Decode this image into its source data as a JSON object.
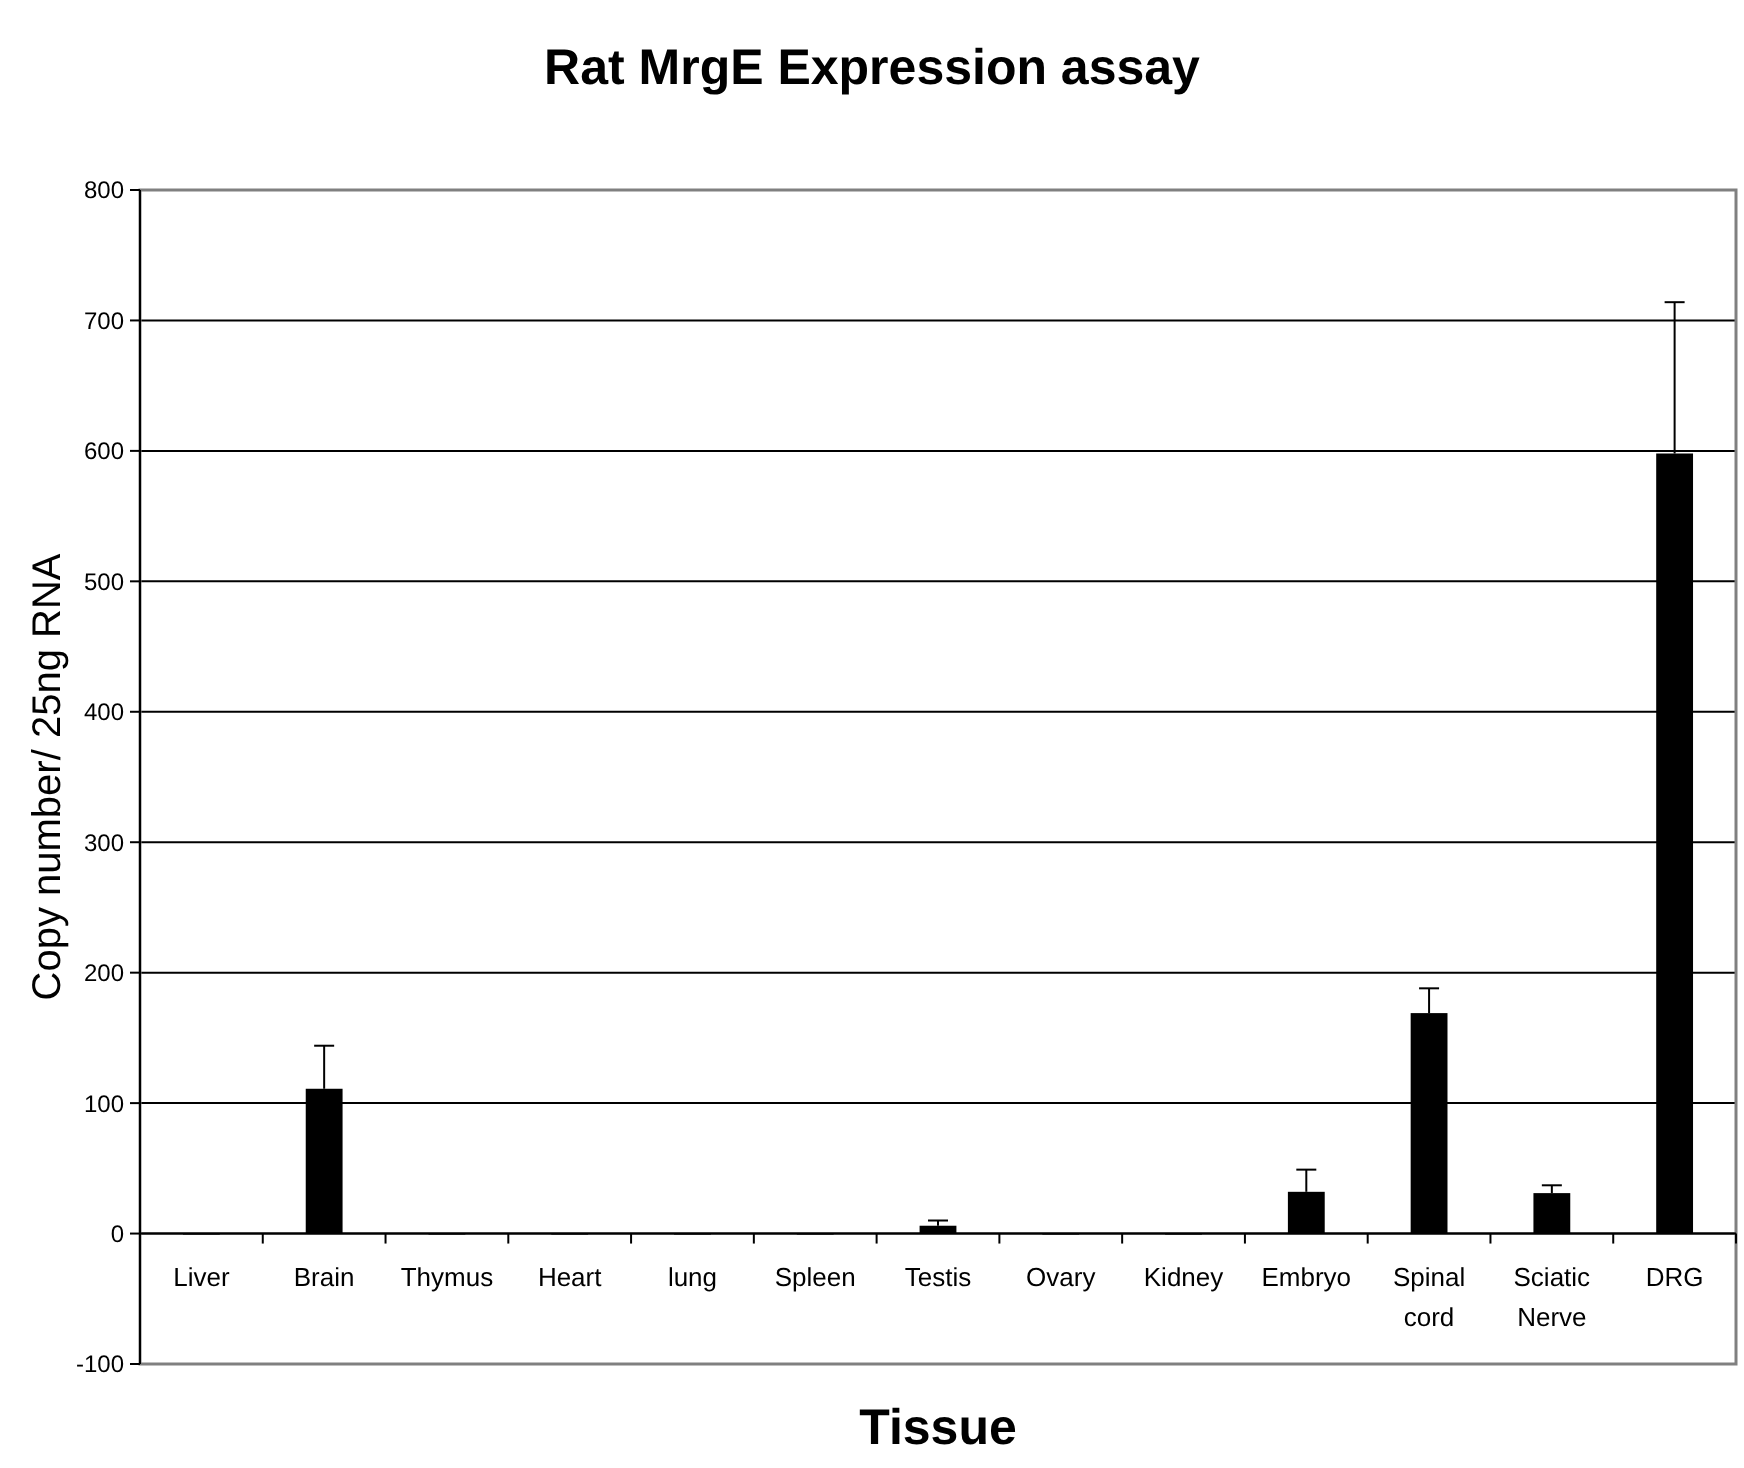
{
  "chart_data": {
    "type": "bar",
    "title": "Rat MrgE Expression assay",
    "xlabel": "Tissue",
    "ylabel": "Copy number/ 25ng RNA",
    "categories": [
      "Liver",
      "Brain",
      "Thymus",
      "Heart",
      "lung",
      "Spleen",
      "Testis",
      "Ovary",
      "Kidney",
      "Embryo",
      "Spinal cord",
      "Sciatic Nerve",
      "DRG"
    ],
    "values": [
      0,
      111,
      0,
      0,
      0,
      0,
      6,
      0,
      0,
      32,
      169,
      31,
      598
    ],
    "errors": [
      null,
      [
        111,
        144
      ],
      null,
      null,
      null,
      null,
      [
        6,
        10
      ],
      null,
      null,
      [
        32,
        49
      ],
      [
        169,
        188
      ],
      [
        31,
        37
      ],
      [
        598,
        714
      ]
    ],
    "color": "#000000",
    "ylim": [
      -100,
      800
    ],
    "yticks": [
      -100,
      0,
      100,
      200,
      300,
      400,
      500,
      600,
      700,
      800
    ],
    "grid": "y"
  }
}
